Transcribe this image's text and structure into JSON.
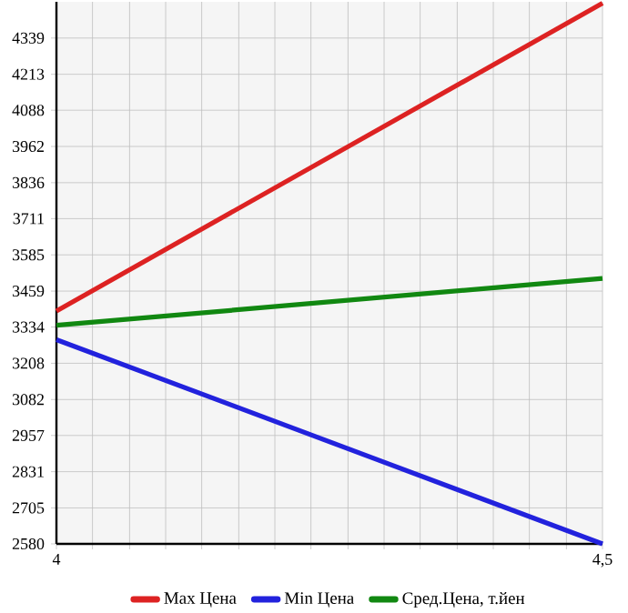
{
  "chart_data": {
    "type": "line",
    "x": [
      4,
      4.5
    ],
    "series": [
      {
        "name": "Max Цена",
        "color": "#dd2222",
        "values": [
          3390,
          4460
        ]
      },
      {
        "name": "Min Цена",
        "color": "#2222dd",
        "values": [
          3290,
          2580
        ]
      },
      {
        "name": "Сред.Цена, т.йен",
        "color": "#118811",
        "values": [
          3340,
          3503
        ]
      }
    ],
    "xlim": [
      4,
      4.5
    ],
    "xticks": [
      4,
      {
        "value": 4.033,
        "label": null
      },
      {
        "value": 4.067,
        "label": null
      },
      {
        "value": 4.1,
        "label": null
      },
      {
        "value": 4.133,
        "label": null
      },
      {
        "value": 4.167,
        "label": null
      },
      {
        "value": 4.2,
        "label": null
      },
      {
        "value": 4.233,
        "label": null
      },
      {
        "value": 4.267,
        "label": null
      },
      {
        "value": 4.3,
        "label": null
      },
      {
        "value": 4.333,
        "label": null
      },
      {
        "value": 4.367,
        "label": null
      },
      {
        "value": 4.4,
        "label": null
      },
      {
        "value": 4.433,
        "label": null
      },
      {
        "value": 4.467,
        "label": null
      },
      {
        "value": 4.5,
        "label": "4,5"
      }
    ],
    "ylim": [
      2580,
      4465
    ],
    "yticks": [
      2580,
      2705,
      2831,
      2957,
      3082,
      3208,
      3334,
      3459,
      3585,
      3711,
      3836,
      3962,
      4088,
      4213,
      4339
    ],
    "grid": true,
    "legend": "bottom",
    "marker": "none",
    "line_style": "solid"
  }
}
